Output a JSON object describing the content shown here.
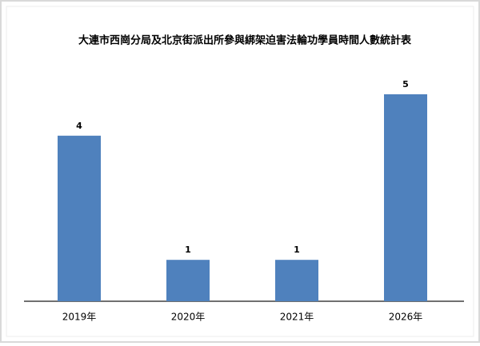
{
  "chart_data": {
    "type": "bar",
    "title": "大連市西崗分局及北京街派出所參與綁架迫害法輪功學員時間人數統計表",
    "categories": [
      "2019年",
      "2020年",
      "2021年",
      "2026年"
    ],
    "values": [
      4,
      1,
      1,
      5
    ],
    "color": "#4f81bd"
  }
}
